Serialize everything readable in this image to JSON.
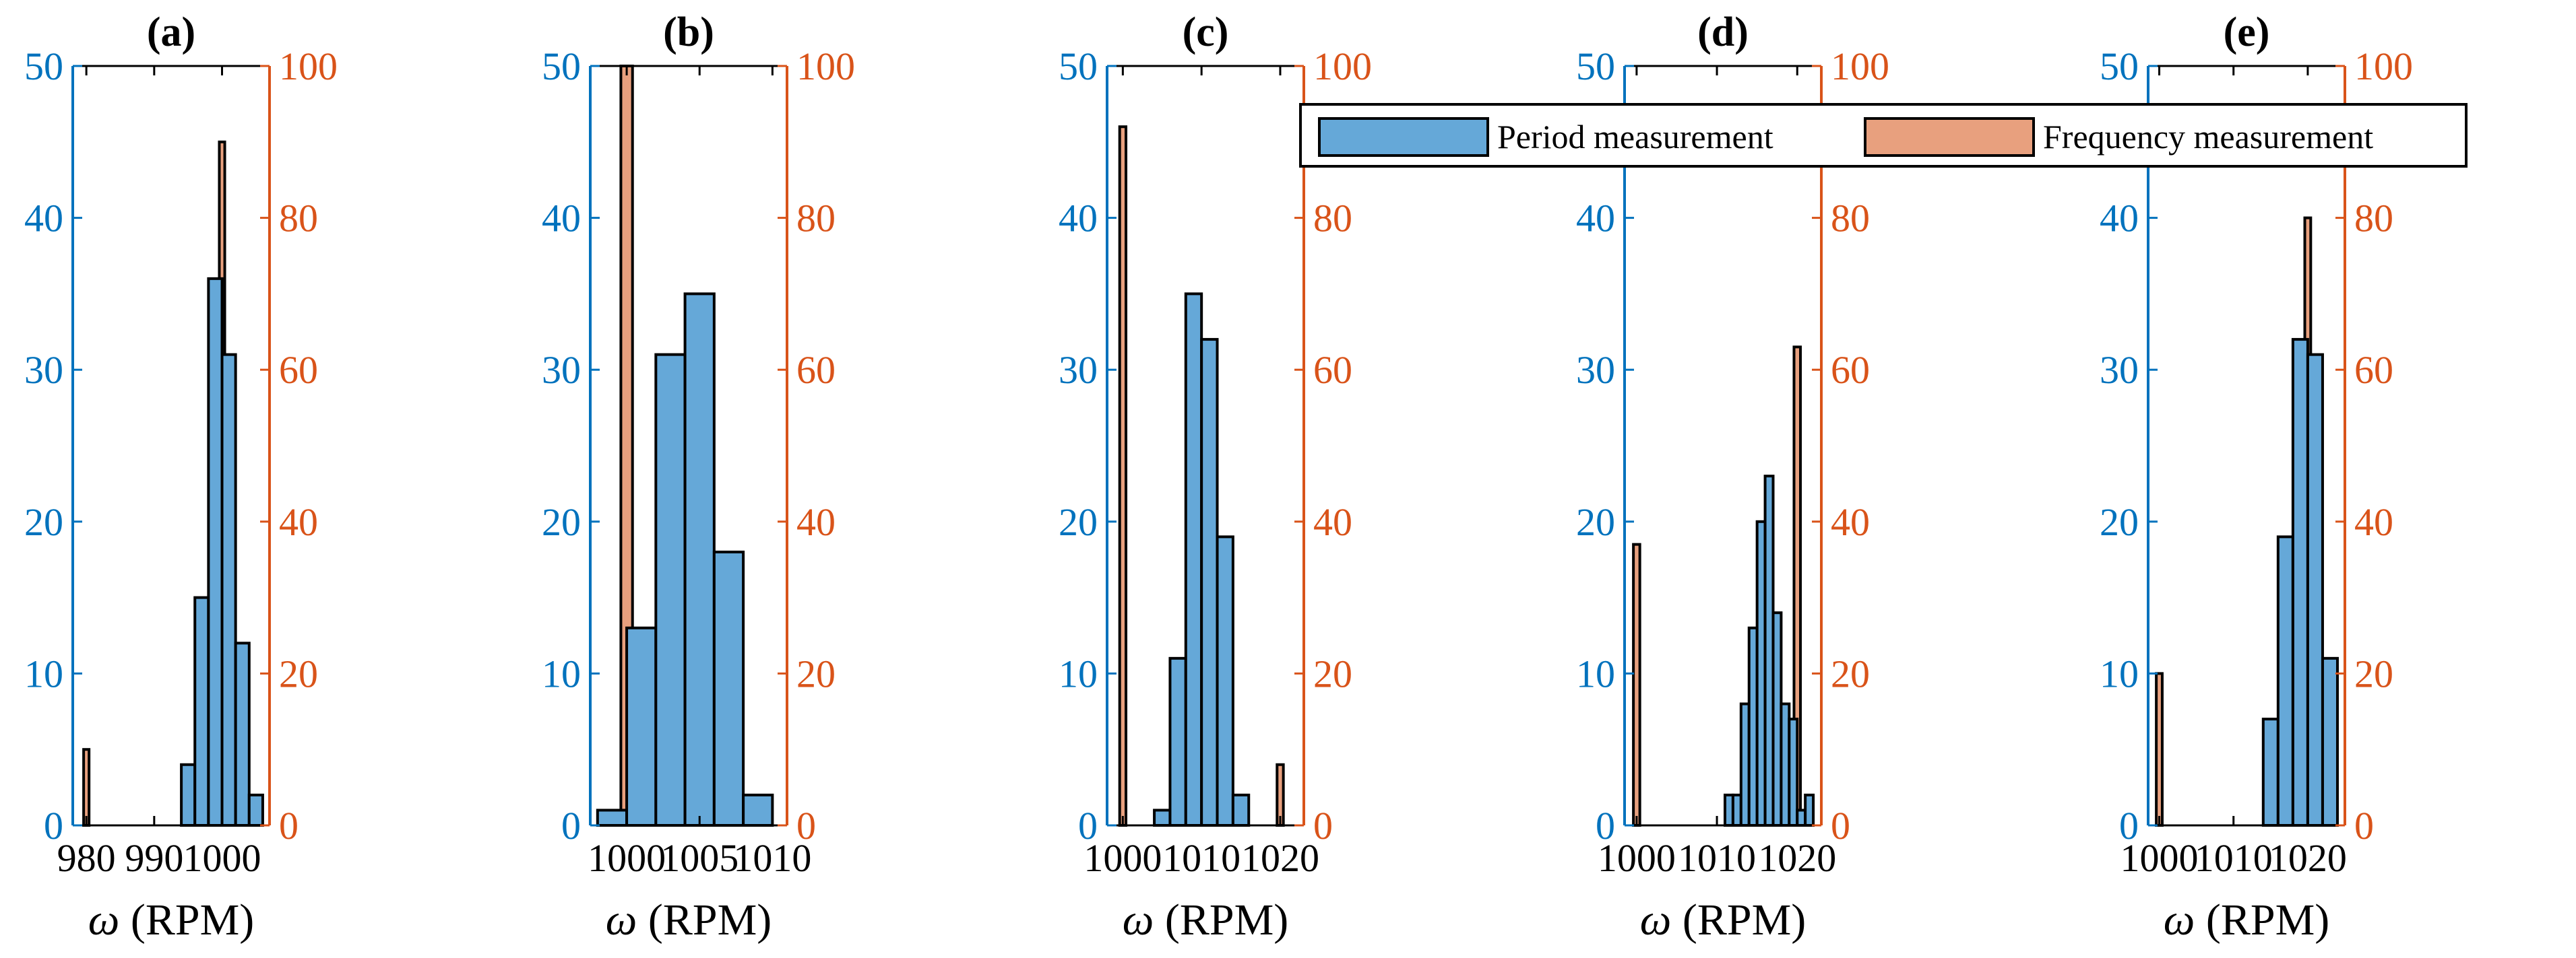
{
  "figure": {
    "left_axis_color": "#0072BD",
    "right_axis_color": "#D95319",
    "legend": {
      "period_label": "Period measurement",
      "frequency_label": "Frequency measurement",
      "period_color": "#65A8D8",
      "frequency_color": "#E8A07E"
    }
  },
  "chart_data": [
    {
      "id": "a",
      "type": "bar",
      "title": "(a)",
      "xlabel_symbol": "ω",
      "xlabel_unit": "(RPM)",
      "xlim": [
        978,
        1007
      ],
      "xticks": [
        980,
        990,
        1000
      ],
      "ylim_left": [
        0,
        50
      ],
      "yticks_left": [
        0,
        10,
        20,
        30,
        40,
        50
      ],
      "ylim_right": [
        0,
        100
      ],
      "yticks_right": [
        0,
        20,
        40,
        60,
        80,
        100
      ],
      "period": [
        {
          "x0": 994,
          "x1": 996,
          "count": 4
        },
        {
          "x0": 996,
          "x1": 998,
          "count": 15
        },
        {
          "x0": 998,
          "x1": 1000,
          "count": 36
        },
        {
          "x0": 1000,
          "x1": 1002,
          "count": 31
        },
        {
          "x0": 1002,
          "x1": 1004,
          "count": 12
        },
        {
          "x0": 1004,
          "x1": 1006,
          "count": 2
        }
      ],
      "frequency": [
        {
          "x0": 979.6,
          "x1": 980.4,
          "count": 10
        },
        {
          "x0": 999.6,
          "x1": 1000.4,
          "count": 90
        }
      ]
    },
    {
      "id": "b",
      "type": "bar",
      "title": "(b)",
      "xlabel_symbol": "ω",
      "xlabel_unit": "(RPM)",
      "xlim": [
        997.5,
        1011
      ],
      "xticks": [
        1000,
        1005,
        1010
      ],
      "ylim_left": [
        0,
        50
      ],
      "yticks_left": [
        0,
        10,
        20,
        30,
        40,
        50
      ],
      "ylim_right": [
        0,
        100
      ],
      "yticks_right": [
        0,
        20,
        40,
        60,
        80,
        100
      ],
      "period": [
        {
          "x0": 998,
          "x1": 1000,
          "count": 1
        },
        {
          "x0": 1000,
          "x1": 1002,
          "count": 13
        },
        {
          "x0": 1002,
          "x1": 1004,
          "count": 31
        },
        {
          "x0": 1004,
          "x1": 1006,
          "count": 35
        },
        {
          "x0": 1006,
          "x1": 1008,
          "count": 18
        },
        {
          "x0": 1008,
          "x1": 1010,
          "count": 2
        }
      ],
      "frequency": [
        {
          "x0": 999.6,
          "x1": 1000.4,
          "count": 100
        }
      ]
    },
    {
      "id": "c",
      "type": "bar",
      "title": "(c)",
      "xlabel_symbol": "ω",
      "xlabel_unit": "(RPM)",
      "xlim": [
        998,
        1023
      ],
      "xticks": [
        1000,
        1010,
        1020
      ],
      "ylim_left": [
        0,
        50
      ],
      "yticks_left": [
        0,
        10,
        20,
        30,
        40,
        50
      ],
      "ylim_right": [
        0,
        100
      ],
      "yticks_right": [
        0,
        20,
        40,
        60,
        80,
        100
      ],
      "period": [
        {
          "x0": 1004,
          "x1": 1006,
          "count": 1
        },
        {
          "x0": 1006,
          "x1": 1008,
          "count": 11
        },
        {
          "x0": 1008,
          "x1": 1010,
          "count": 35
        },
        {
          "x0": 1010,
          "x1": 1012,
          "count": 32
        },
        {
          "x0": 1012,
          "x1": 1014,
          "count": 19
        },
        {
          "x0": 1014,
          "x1": 1016,
          "count": 2
        }
      ],
      "frequency": [
        {
          "x0": 999.6,
          "x1": 1000.4,
          "count": 92
        },
        {
          "x0": 1019.6,
          "x1": 1020.4,
          "count": 8
        }
      ]
    },
    {
      "id": "d",
      "type": "bar",
      "title": "(d)",
      "xlabel_symbol": "ω",
      "xlabel_unit": "(RPM)",
      "xlim": [
        998.5,
        1023
      ],
      "xticks": [
        1000,
        1010,
        1020
      ],
      "ylim_left": [
        0,
        50
      ],
      "yticks_left": [
        0,
        10,
        20,
        30,
        40,
        50
      ],
      "ylim_right": [
        0,
        100
      ],
      "yticks_right": [
        0,
        20,
        40,
        60,
        80,
        100
      ],
      "period": [
        {
          "x0": 1011,
          "x1": 1012,
          "count": 2
        },
        {
          "x0": 1012,
          "x1": 1013,
          "count": 2
        },
        {
          "x0": 1013,
          "x1": 1014,
          "count": 8
        },
        {
          "x0": 1014,
          "x1": 1015,
          "count": 13
        },
        {
          "x0": 1015,
          "x1": 1016,
          "count": 20
        },
        {
          "x0": 1016,
          "x1": 1017,
          "count": 23
        },
        {
          "x0": 1017,
          "x1": 1018,
          "count": 14
        },
        {
          "x0": 1018,
          "x1": 1019,
          "count": 8
        },
        {
          "x0": 1019,
          "x1": 1020,
          "count": 7
        },
        {
          "x0": 1020,
          "x1": 1021,
          "count": 1
        },
        {
          "x0": 1021,
          "x1": 1022,
          "count": 2
        }
      ],
      "frequency": [
        {
          "x0": 999.6,
          "x1": 1000.4,
          "count": 37
        },
        {
          "x0": 1019.6,
          "x1": 1020.4,
          "count": 63
        }
      ]
    },
    {
      "id": "e",
      "type": "bar",
      "title": "(e)",
      "xlabel_symbol": "ω",
      "xlabel_unit": "(RPM)",
      "xlim": [
        998.5,
        1025
      ],
      "xticks": [
        1000,
        1010,
        1020
      ],
      "ylim_left": [
        0,
        50
      ],
      "yticks_left": [
        0,
        10,
        20,
        30,
        40,
        50
      ],
      "ylim_right": [
        0,
        100
      ],
      "yticks_right": [
        0,
        20,
        40,
        60,
        80,
        100
      ],
      "period": [
        {
          "x0": 1014,
          "x1": 1016,
          "count": 7
        },
        {
          "x0": 1016,
          "x1": 1018,
          "count": 19
        },
        {
          "x0": 1018,
          "x1": 1020,
          "count": 32
        },
        {
          "x0": 1020,
          "x1": 1022,
          "count": 31
        },
        {
          "x0": 1022,
          "x1": 1024,
          "count": 11
        }
      ],
      "frequency": [
        {
          "x0": 999.6,
          "x1": 1000.4,
          "count": 20
        },
        {
          "x0": 1019.6,
          "x1": 1020.4,
          "count": 80
        }
      ]
    }
  ]
}
